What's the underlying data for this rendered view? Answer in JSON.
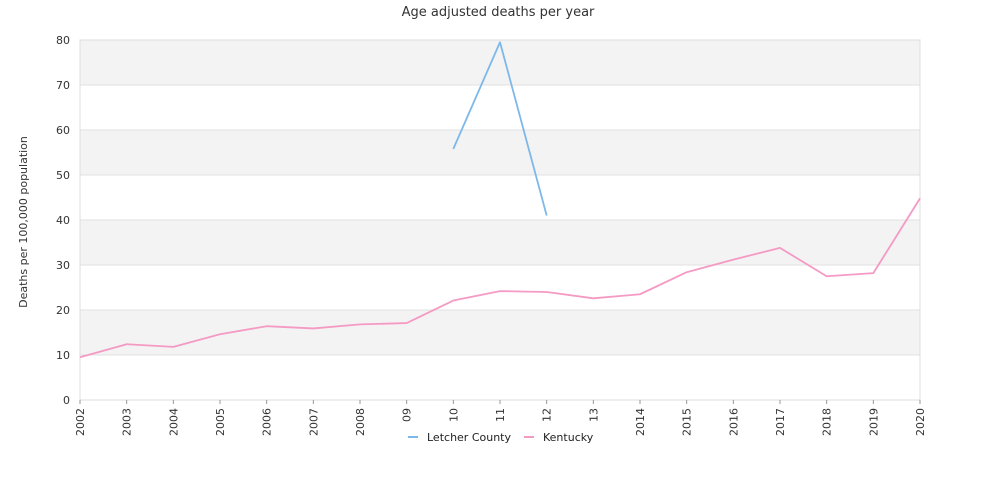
{
  "chart_data": {
    "type": "line",
    "title": "Age adjusted deaths per year",
    "xlabel": "",
    "ylabel": "Deaths per 100,000 population",
    "ylim": [
      0,
      80
    ],
    "yticks": [
      "0",
      "10",
      "20",
      "30",
      "40",
      "50",
      "60",
      "70",
      "80"
    ],
    "categories": [
      "2002",
      "2003",
      "2004",
      "2005",
      "2006",
      "2007",
      "2008",
      "09",
      "10",
      "11",
      "12",
      "13",
      "2014",
      "2015",
      "2016",
      "2017",
      "2018",
      "2019",
      "2020"
    ],
    "grid": true,
    "legend_position": "bottom",
    "series": [
      {
        "name": "Letcher County",
        "color": "#7db8ea",
        "values": [
          null,
          null,
          null,
          null,
          null,
          null,
          null,
          null,
          55.8,
          79.5,
          41.0,
          null,
          null,
          null,
          null,
          null,
          null,
          null,
          null
        ]
      },
      {
        "name": "Kentucky",
        "color": "#f49ac4",
        "values": [
          9.5,
          12.4,
          11.8,
          14.6,
          16.4,
          15.9,
          16.8,
          17.1,
          22.1,
          24.2,
          24.0,
          22.6,
          23.5,
          28.4,
          31.2,
          33.8,
          27.5,
          28.2,
          44.8
        ]
      }
    ]
  }
}
